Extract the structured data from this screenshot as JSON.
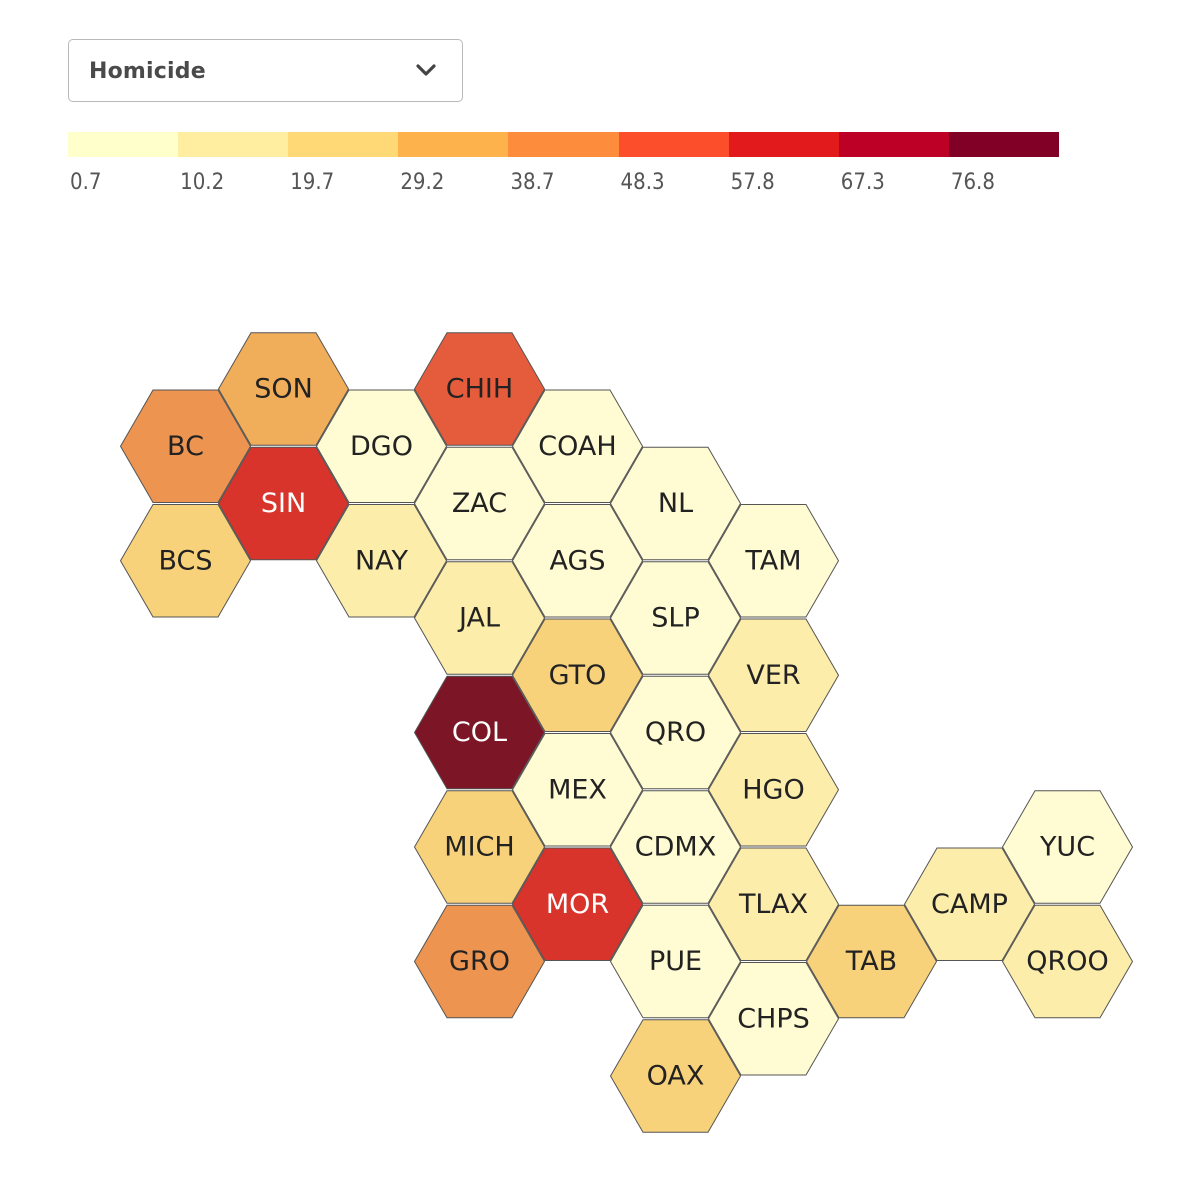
{
  "dropdown": {
    "selected": "Homicide",
    "icon": "chevron-down-icon"
  },
  "legend": {
    "colors": [
      "#ffffcc",
      "#ffeda0",
      "#fed976",
      "#feb24c",
      "#fd8d3c",
      "#fc4e2a",
      "#e31a1c",
      "#bd0026",
      "#800026"
    ],
    "ticks": [
      "0.7",
      "10.2",
      "19.7",
      "29.2",
      "38.7",
      "48.3",
      "57.8",
      "67.3",
      "76.8"
    ]
  },
  "chart_data": {
    "type": "hexbin map",
    "cells": [
      {
        "id": "SON",
        "label": "SON",
        "col": 2,
        "row": 0,
        "color": "#f0ad5a",
        "text_color": "#222222"
      },
      {
        "id": "CHIH",
        "label": "CHIH",
        "col": 4,
        "row": 0,
        "color": "#e55c3c",
        "text_color": "#222222"
      },
      {
        "id": "BC",
        "label": "BC",
        "col": 1,
        "row": 1,
        "color": "#ec9450",
        "text_color": "#222222"
      },
      {
        "id": "DGO",
        "label": "DGO",
        "col": 3,
        "row": 1,
        "color": "#fffbd2",
        "text_color": "#222222"
      },
      {
        "id": "COAH",
        "label": "COAH",
        "col": 5,
        "row": 1,
        "color": "#fffbd2",
        "text_color": "#222222"
      },
      {
        "id": "SIN",
        "label": "SIN",
        "col": 2,
        "row": 2,
        "color": "#d9342b",
        "text_color": "#ffffff"
      },
      {
        "id": "ZAC",
        "label": "ZAC",
        "col": 4,
        "row": 2,
        "color": "#fffbd2",
        "text_color": "#222222"
      },
      {
        "id": "NL",
        "label": "NL",
        "col": 6,
        "row": 2,
        "color": "#fffbd2",
        "text_color": "#222222"
      },
      {
        "id": "BCS",
        "label": "BCS",
        "col": 1,
        "row": 3,
        "color": "#f8d27a",
        "text_color": "#222222"
      },
      {
        "id": "NAY",
        "label": "NAY",
        "col": 3,
        "row": 3,
        "color": "#fdedab",
        "text_color": "#222222"
      },
      {
        "id": "AGS",
        "label": "AGS",
        "col": 5,
        "row": 3,
        "color": "#fffbd2",
        "text_color": "#222222"
      },
      {
        "id": "TAM",
        "label": "TAM",
        "col": 7,
        "row": 3,
        "color": "#fffbd2",
        "text_color": "#222222"
      },
      {
        "id": "JAL",
        "label": "JAL",
        "col": 4,
        "row": 4,
        "color": "#fdedab",
        "text_color": "#222222"
      },
      {
        "id": "SLP",
        "label": "SLP",
        "col": 6,
        "row": 4,
        "color": "#fffbd2",
        "text_color": "#222222"
      },
      {
        "id": "GTO",
        "label": "GTO",
        "col": 5,
        "row": 5,
        "color": "#f8d27a",
        "text_color": "#222222"
      },
      {
        "id": "VER",
        "label": "VER",
        "col": 7,
        "row": 5,
        "color": "#fdedab",
        "text_color": "#222222"
      },
      {
        "id": "COL",
        "label": "COL",
        "col": 4,
        "row": 6,
        "color": "#7c1526",
        "text_color": "#ffffff"
      },
      {
        "id": "QRO",
        "label": "QRO",
        "col": 6,
        "row": 6,
        "color": "#fffbd2",
        "text_color": "#222222"
      },
      {
        "id": "MEX",
        "label": "MEX",
        "col": 5,
        "row": 7,
        "color": "#fffbd2",
        "text_color": "#222222"
      },
      {
        "id": "HGO",
        "label": "HGO",
        "col": 7,
        "row": 7,
        "color": "#fdedab",
        "text_color": "#222222"
      },
      {
        "id": "MICH",
        "label": "MICH",
        "col": 4,
        "row": 8,
        "color": "#f8d27a",
        "text_color": "#222222"
      },
      {
        "id": "CDMX",
        "label": "CDMX",
        "col": 6,
        "row": 8,
        "color": "#fffbd2",
        "text_color": "#222222"
      },
      {
        "id": "YUC",
        "label": "YUC",
        "col": 10,
        "row": 8,
        "color": "#fffbd2",
        "text_color": "#222222"
      },
      {
        "id": "MOR",
        "label": "MOR",
        "col": 5,
        "row": 9,
        "color": "#d9342b",
        "text_color": "#ffffff"
      },
      {
        "id": "TLAX",
        "label": "TLAX",
        "col": 7,
        "row": 9,
        "color": "#fdedab",
        "text_color": "#222222"
      },
      {
        "id": "CAMP",
        "label": "CAMP",
        "col": 9,
        "row": 9,
        "color": "#fdedab",
        "text_color": "#222222"
      },
      {
        "id": "GRO",
        "label": "GRO",
        "col": 4,
        "row": 10,
        "color": "#ec9450",
        "text_color": "#222222"
      },
      {
        "id": "PUE",
        "label": "PUE",
        "col": 6,
        "row": 10,
        "color": "#fffbd2",
        "text_color": "#222222"
      },
      {
        "id": "TAB",
        "label": "TAB",
        "col": 8,
        "row": 10,
        "color": "#f8d27a",
        "text_color": "#222222"
      },
      {
        "id": "QROO",
        "label": "QROO",
        "col": 10,
        "row": 10,
        "color": "#fdedab",
        "text_color": "#222222"
      },
      {
        "id": "CHPS",
        "label": "CHPS",
        "col": 7,
        "row": 11,
        "color": "#fffbd2",
        "text_color": "#222222"
      },
      {
        "id": "OAX",
        "label": "OAX",
        "col": 6,
        "row": 12,
        "color": "#f8d27a",
        "text_color": "#222222"
      }
    ]
  }
}
